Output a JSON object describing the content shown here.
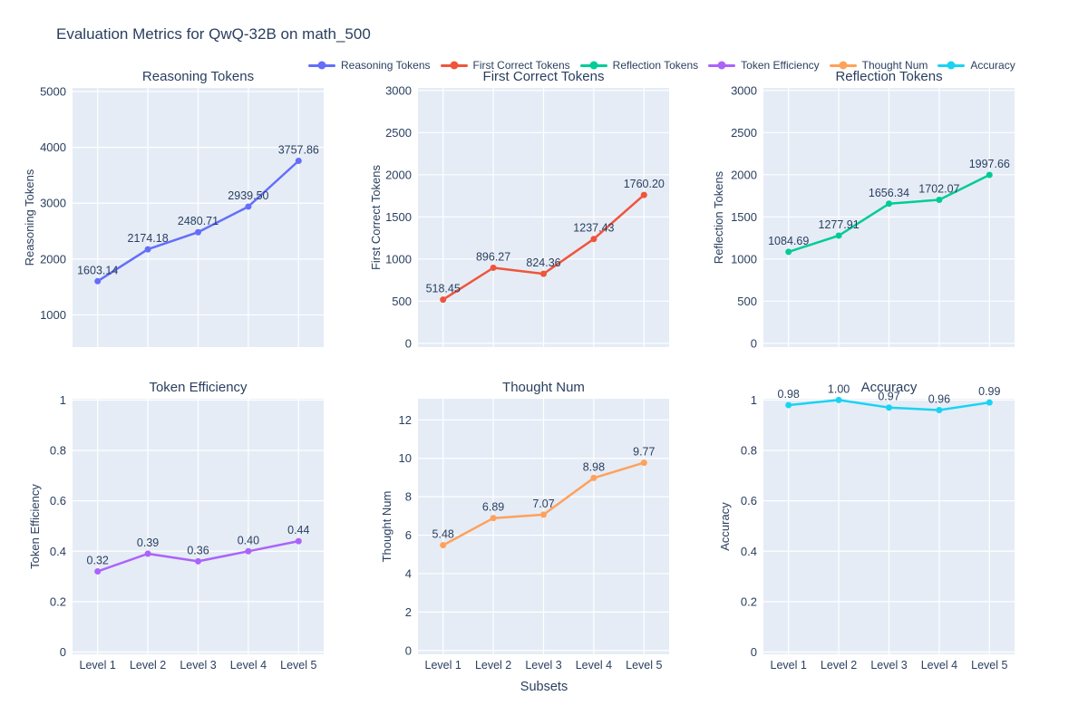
{
  "page": {
    "title": "Evaluation Metrics for QwQ-32B on math_500",
    "xlabel": "Subsets"
  },
  "colors": {
    "text": "#2a3f5f",
    "plot_background": "#E5ECF6",
    "gridline": "#ffffff"
  },
  "legend": {
    "position": "top-horizontal",
    "items": [
      {
        "label": "Reasoning Tokens",
        "color": "#636EFA"
      },
      {
        "label": "First Correct Tokens",
        "color": "#EF553B"
      },
      {
        "label": "Reflection Tokens",
        "color": "#00CC96"
      },
      {
        "label": "Token Efficiency",
        "color": "#AB63FA"
      },
      {
        "label": "Thought Num",
        "color": "#FFA15A"
      },
      {
        "label": "Accuracy",
        "color": "#19D3F3"
      }
    ]
  },
  "categories": [
    "Level 1",
    "Level 2",
    "Level 3",
    "Level 4",
    "Level 5"
  ],
  "chart_data": [
    {
      "type": "line",
      "title": "Reasoning Tokens",
      "ylabel": "Reasoning Tokens",
      "color": "#636EFA",
      "categories": [
        "Level 1",
        "Level 2",
        "Level 3",
        "Level 4",
        "Level 5"
      ],
      "values": [
        1603.14,
        2174.18,
        2480.71,
        2939.5,
        3757.86
      ],
      "labels": [
        "1603.14",
        "2174.18",
        "2480.71",
        "2939.50",
        "3757.86"
      ],
      "yticks": [
        1000,
        2000,
        3000,
        4000,
        5000
      ],
      "ylim": [
        423,
        5065
      ],
      "grid": true,
      "show_x_ticks": false
    },
    {
      "type": "line",
      "title": "First Correct Tokens",
      "ylabel": "First Correct Tokens",
      "color": "#EF553B",
      "categories": [
        "Level 1",
        "Level 2",
        "Level 3",
        "Level 4",
        "Level 5"
      ],
      "values": [
        518.45,
        896.27,
        824.36,
        1237.43,
        1760.2
      ],
      "labels": [
        "518.45",
        "896.27",
        "824.36",
        "1237.43",
        "1760.20"
      ],
      "yticks": [
        0,
        500,
        1000,
        1500,
        2000,
        2500,
        3000
      ],
      "ylim": [
        -45,
        3030
      ],
      "grid": true,
      "show_x_ticks": false
    },
    {
      "type": "line",
      "title": "Reflection Tokens",
      "ylabel": "Reflection Tokens",
      "color": "#00CC96",
      "categories": [
        "Level 1",
        "Level 2",
        "Level 3",
        "Level 4",
        "Level 5"
      ],
      "values": [
        1084.69,
        1277.91,
        1656.34,
        1702.07,
        1997.66
      ],
      "labels": [
        "1084.69",
        "1277.91",
        "1656.34",
        "1702.07",
        "1997.66"
      ],
      "yticks": [
        0,
        500,
        1000,
        1500,
        2000,
        2500,
        3000
      ],
      "ylim": [
        -45,
        3030
      ],
      "grid": true,
      "show_x_ticks": false
    },
    {
      "type": "line",
      "title": "Token Efficiency",
      "ylabel": "Token Efficiency",
      "color": "#AB63FA",
      "categories": [
        "Level 1",
        "Level 2",
        "Level 3",
        "Level 4",
        "Level 5"
      ],
      "values": [
        0.32,
        0.39,
        0.36,
        0.4,
        0.44
      ],
      "labels": [
        "0.32",
        "0.39",
        "0.36",
        "0.40",
        "0.44"
      ],
      "yticks": [
        0,
        0.2,
        0.4,
        0.6,
        0.8,
        1
      ],
      "ylim": [
        -0.009,
        1.005
      ],
      "grid": true,
      "show_x_ticks": true
    },
    {
      "type": "line",
      "title": "Thought Num",
      "ylabel": "Thought Num",
      "color": "#FFA15A",
      "categories": [
        "Level 1",
        "Level 2",
        "Level 3",
        "Level 4",
        "Level 5"
      ],
      "values": [
        5.48,
        6.89,
        7.07,
        8.98,
        9.77
      ],
      "labels": [
        "5.48",
        "6.89",
        "7.07",
        "8.98",
        "9.77"
      ],
      "yticks": [
        0,
        2,
        4,
        6,
        8,
        10,
        12
      ],
      "ylim": [
        -0.2,
        13.1
      ],
      "grid": true,
      "show_x_ticks": true
    },
    {
      "type": "line",
      "title": "Accuracy",
      "ylabel": "Accuracy",
      "color": "#19D3F3",
      "categories": [
        "Level 1",
        "Level 2",
        "Level 3",
        "Level 4",
        "Level 5"
      ],
      "values": [
        0.98,
        1.0,
        0.97,
        0.96,
        0.99
      ],
      "labels": [
        "0.98",
        "1.00",
        "0.97",
        "0.96",
        "0.99"
      ],
      "yticks": [
        0,
        0.2,
        0.4,
        0.6,
        0.8,
        1
      ],
      "ylim": [
        -0.009,
        1.005
      ],
      "grid": true,
      "show_x_ticks": true
    }
  ]
}
